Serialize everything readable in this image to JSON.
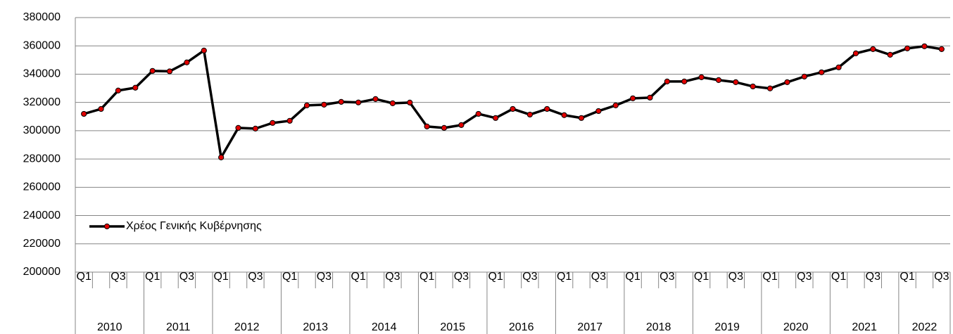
{
  "chart_data": {
    "type": "line",
    "categories": [
      "Q1",
      null,
      "Q3",
      null,
      "Q1",
      null,
      "Q3",
      null,
      "Q1",
      null,
      "Q3",
      null,
      "Q1",
      null,
      "Q3",
      null,
      "Q1",
      null,
      "Q3",
      null,
      "Q1",
      null,
      "Q3",
      null,
      "Q1",
      null,
      "Q3",
      null,
      "Q1",
      null,
      "Q3",
      null,
      "Q1",
      null,
      "Q3",
      null,
      "Q1",
      null,
      "Q3",
      null,
      "Q1",
      null,
      "Q3",
      null,
      "Q1",
      null,
      "Q3",
      null,
      "Q1",
      null,
      "Q3"
    ],
    "category_groups": [
      "2010",
      "2011",
      "2012",
      "2013",
      "2014",
      "2015",
      "2016",
      "2017",
      "2018",
      "2019",
      "2020",
      "2021",
      "2022"
    ],
    "series": [
      {
        "name": "Χρέος Γενικής Κυβέρνησης",
        "color": "#000000",
        "marker_color": "#e00000",
        "values": [
          311900,
          315400,
          328400,
          330400,
          342300,
          342000,
          348300,
          356700,
          281100,
          302000,
          301500,
          305500,
          307000,
          317900,
          318400,
          320400,
          320000,
          322400,
          319400,
          319900,
          303000,
          302000,
          304000,
          311900,
          309000,
          315400,
          311400,
          315400,
          311000,
          309000,
          313900,
          317900,
          322900,
          323400,
          334800,
          334800,
          337800,
          335800,
          334300,
          331300,
          329900,
          334300,
          338300,
          341300,
          344800,
          354700,
          357700,
          353700,
          358200,
          359700,
          357700
        ]
      }
    ],
    "ylim": [
      200000,
      380000
    ],
    "yticks": [
      200000,
      220000,
      240000,
      260000,
      280000,
      300000,
      320000,
      340000,
      360000,
      380000
    ],
    "grid": true,
    "legend_position": "left"
  }
}
